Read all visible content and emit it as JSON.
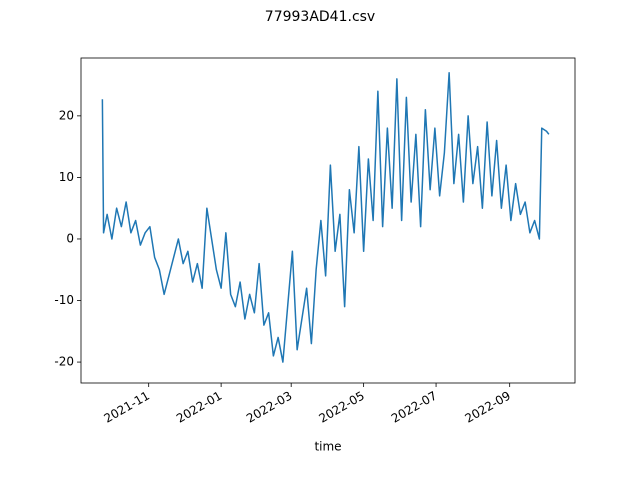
{
  "chart_data": {
    "type": "line",
    "title": "77993AD41.csv",
    "xlabel": "time",
    "color": "#1f77b4",
    "x": [
      "2021-09-23",
      "2021-09-24",
      "2021-09-27",
      "2021-10-01",
      "2021-10-05",
      "2021-10-09",
      "2021-10-13",
      "2021-10-17",
      "2021-10-21",
      "2021-10-25",
      "2021-10-29",
      "2021-11-02",
      "2021-11-06",
      "2021-11-10",
      "2021-11-14",
      "2021-11-18",
      "2021-11-22",
      "2021-11-26",
      "2021-11-30",
      "2021-12-04",
      "2021-12-08",
      "2021-12-12",
      "2021-12-16",
      "2021-12-20",
      "2021-12-24",
      "2021-12-28",
      "2022-01-01",
      "2022-01-05",
      "2022-01-09",
      "2022-01-13",
      "2022-01-17",
      "2022-01-21",
      "2022-01-25",
      "2022-01-29",
      "2022-02-02",
      "2022-02-06",
      "2022-02-10",
      "2022-02-14",
      "2022-02-18",
      "2022-02-22",
      "2022-02-26",
      "2022-03-02",
      "2022-03-06",
      "2022-03-10",
      "2022-03-14",
      "2022-03-18",
      "2022-03-22",
      "2022-03-26",
      "2022-03-30",
      "2022-04-03",
      "2022-04-07",
      "2022-04-11",
      "2022-04-15",
      "2022-04-19",
      "2022-04-23",
      "2022-04-27",
      "2022-05-01",
      "2022-05-05",
      "2022-05-09",
      "2022-05-13",
      "2022-05-17",
      "2022-05-21",
      "2022-05-25",
      "2022-05-29",
      "2022-06-02",
      "2022-06-06",
      "2022-06-10",
      "2022-06-14",
      "2022-06-18",
      "2022-06-22",
      "2022-06-26",
      "2022-06-30",
      "2022-07-04",
      "2022-07-08",
      "2022-07-12",
      "2022-07-16",
      "2022-07-20",
      "2022-07-24",
      "2022-07-28",
      "2022-08-01",
      "2022-08-05",
      "2022-08-09",
      "2022-08-13",
      "2022-08-17",
      "2022-08-21",
      "2022-08-25",
      "2022-08-29",
      "2022-09-02",
      "2022-09-06",
      "2022-09-10",
      "2022-09-14",
      "2022-09-18",
      "2022-09-22",
      "2022-09-26",
      "2022-09-28",
      "2022-10-02",
      "2022-10-04"
    ],
    "values": [
      22.7,
      1,
      4,
      0,
      5,
      2,
      6,
      1,
      3,
      -1,
      1,
      2,
      -3,
      -5,
      -9,
      -6,
      -3,
      0,
      -4,
      -2,
      -7,
      -4,
      -8,
      5,
      0,
      -5,
      -8,
      1,
      -9,
      -11,
      -7,
      -13,
      -9,
      -12,
      -4,
      -14,
      -12,
      -19,
      -16,
      -20,
      -11,
      -2,
      -18,
      -13,
      -8,
      -17,
      -5,
      3,
      -6,
      12,
      -2,
      4,
      -11,
      8,
      1,
      15,
      -2,
      13,
      3,
      24,
      2,
      18,
      5,
      26,
      3,
      23,
      6,
      17,
      2,
      21,
      8,
      18,
      7,
      14,
      27,
      9,
      17,
      6,
      20,
      9,
      15,
      5,
      19,
      7,
      16,
      5,
      12,
      3,
      9,
      4,
      6,
      1,
      3,
      0,
      18,
      17.5,
      17
    ],
    "xlim": [
      "2021-09-05",
      "2022-10-26"
    ],
    "xticks": [
      "2021-11",
      "2022-01",
      "2022-03",
      "2022-05",
      "2022-07",
      "2022-09"
    ],
    "ylim": [
      -23.4,
      29.4
    ],
    "yticks": [
      -20,
      -10,
      0,
      10,
      20
    ]
  }
}
